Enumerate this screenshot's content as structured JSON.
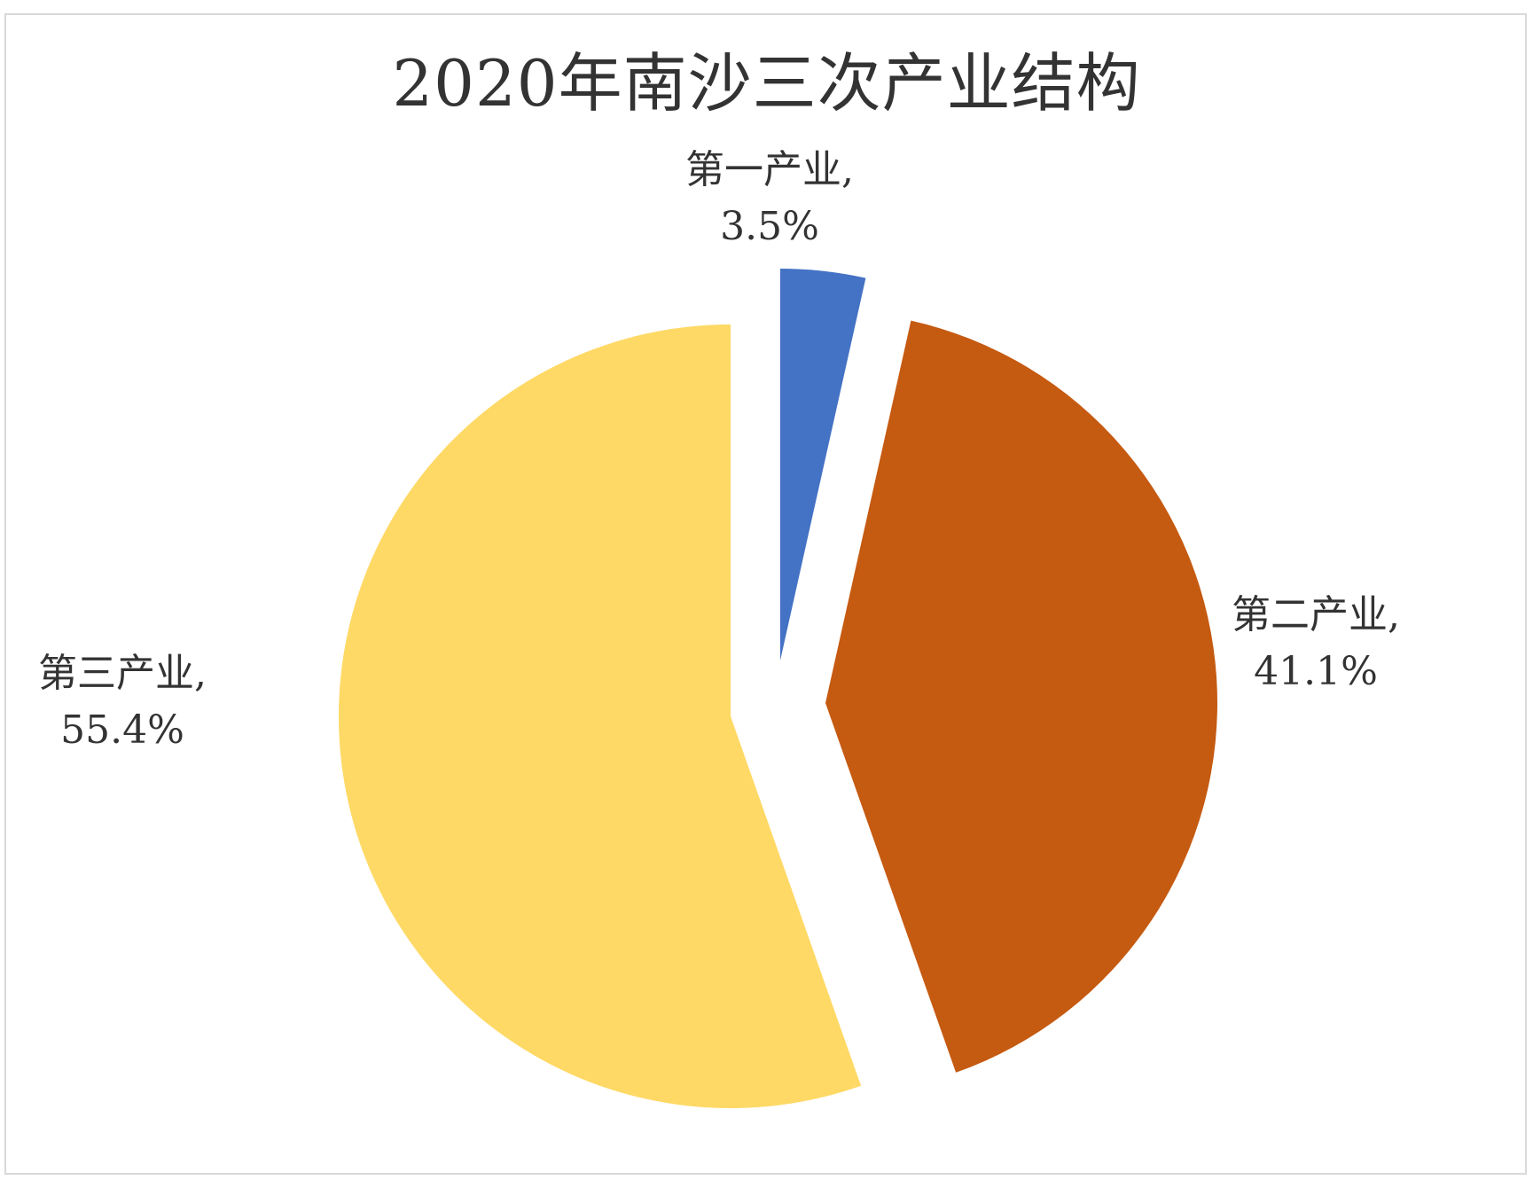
{
  "chart_data": {
    "type": "pie",
    "title": "2020年南沙三次产业结构",
    "categories": [
      "第一产业",
      "第二产业",
      "第三产业"
    ],
    "values": [
      3.5,
      41.1,
      55.4
    ],
    "unit": "%",
    "colors": [
      "#4472C4",
      "#C55A11",
      "#FFD966"
    ],
    "exploded": true,
    "legend": "none",
    "labels": [
      {
        "name": "第一产业,",
        "value": "3.5%"
      },
      {
        "name": "第二产业,",
        "value": "41.1%"
      },
      {
        "name": "第三产业,",
        "value": "55.4%"
      }
    ]
  }
}
